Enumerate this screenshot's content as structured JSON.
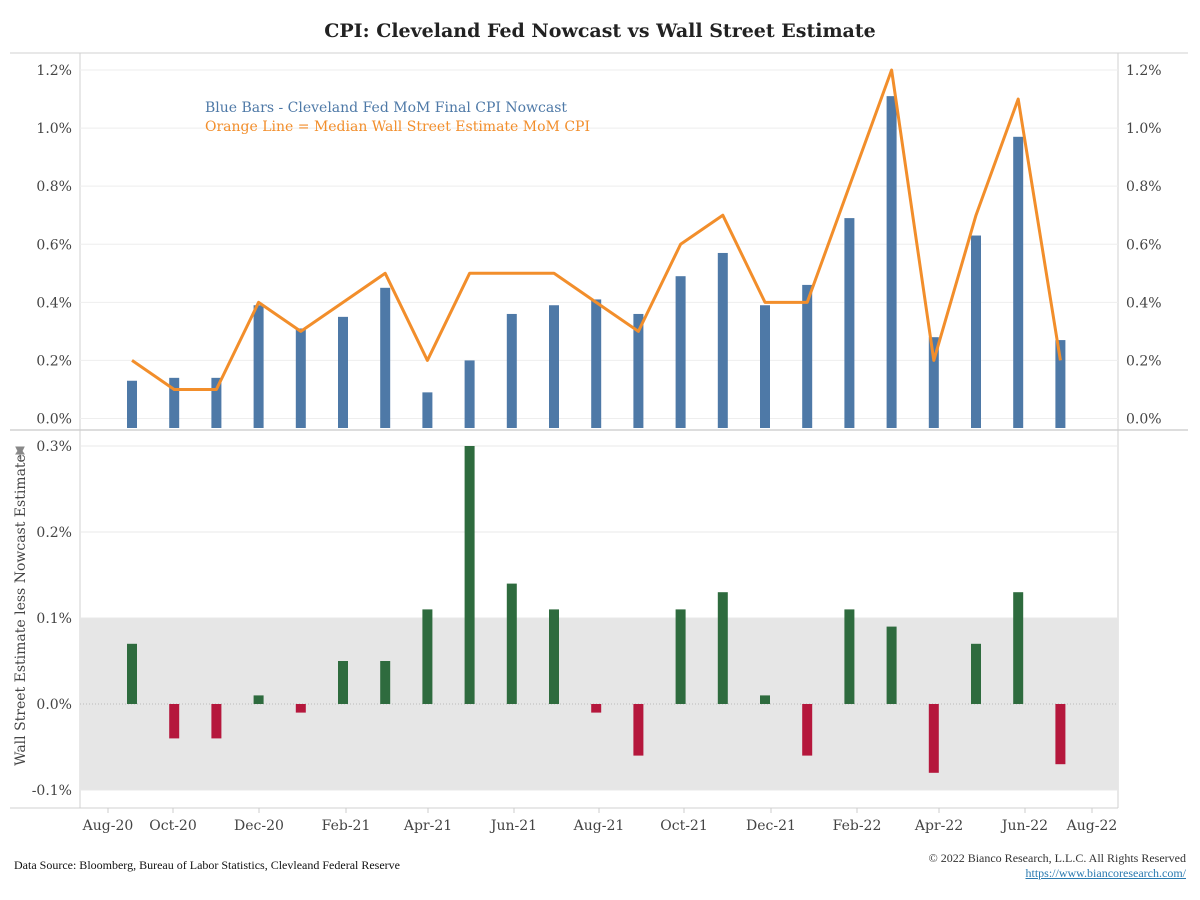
{
  "title": "CPI: Cleveland Fed Nowcast vs Wall Street Estimate",
  "footer": {
    "source": "Data Source: Bloomberg, Bureau of Labor Statistics, Clevleand Federal Reserve",
    "copyright": "© 2022 Bianco Research, L.L.C. All Rights Reserved",
    "url": "https://www.biancoresearch.com/"
  },
  "colors": {
    "nowcast_bar": "#4e79a7",
    "wall_street_line": "#f28e2b",
    "positive_diff": "#2e6b3e",
    "negative_diff": "#b5173c",
    "band": "#e6e6e6"
  },
  "chart_data": [
    {
      "type": "bar",
      "legend": {
        "line1": "Blue Bars - Cleveland Fed MoM Final CPI Nowcast",
        "line2": "Orange Line = Median Wall Street Estimate MoM CPI"
      },
      "x_tick_labels": [
        "Aug-20",
        "Oct-20",
        "Dec-20",
        "Feb-21",
        "Apr-21",
        "Jun-21",
        "Aug-21",
        "Oct-21",
        "Dec-21",
        "Feb-22",
        "Apr-22",
        "Jun-22",
        "Aug-22"
      ],
      "y_tick_labels": [
        "1.2%",
        "1.0%",
        "0.8%",
        "0.6%",
        "0.4%",
        "0.2%",
        "0.0%"
      ],
      "y_ticks": [
        1.2,
        1.0,
        0.8,
        0.6,
        0.4,
        0.2,
        0.0
      ],
      "ylim": [
        0,
        1.2
      ],
      "categories": [
        "Sep-20",
        "Oct-20",
        "Nov-20",
        "Dec-20",
        "Jan-21",
        "Feb-21",
        "Mar-21",
        "Apr-21",
        "May-21",
        "Jun-21",
        "Jul-21",
        "Aug-21",
        "Sep-21",
        "Oct-21",
        "Nov-21",
        "Dec-21",
        "Jan-22",
        "Feb-22",
        "Mar-22",
        "Apr-22",
        "May-22",
        "Jun-22",
        "Jul-22"
      ],
      "series": [
        {
          "kind": "bar",
          "values": [
            0.13,
            0.14,
            0.14,
            0.39,
            0.31,
            0.35,
            0.45,
            0.09,
            0.2,
            0.36,
            0.39,
            0.41,
            0.36,
            0.49,
            0.57,
            0.39,
            0.46,
            0.69,
            1.11,
            0.28,
            0.63,
            0.97,
            0.27
          ]
        },
        {
          "kind": "line",
          "values": [
            0.2,
            0.1,
            0.1,
            0.4,
            0.3,
            0.4,
            0.5,
            0.2,
            0.5,
            0.5,
            0.5,
            0.4,
            0.3,
            0.6,
            0.7,
            0.4,
            0.4,
            0.8,
            1.2,
            0.2,
            0.7,
            1.1,
            0.2
          ]
        }
      ]
    },
    {
      "type": "bar",
      "ylabel": "Wall Street Estimate less Nowcast Estimate",
      "y_tick_labels": [
        "0.3%",
        "0.2%",
        "0.1%",
        "0.0%",
        "-0.1%"
      ],
      "y_ticks": [
        0.3,
        0.2,
        0.1,
        0.0,
        -0.1
      ],
      "ylim": [
        -0.1,
        0.3
      ],
      "band": [
        -0.1,
        0.1
      ],
      "categories": [
        "Sep-20",
        "Oct-20",
        "Nov-20",
        "Dec-20",
        "Jan-21",
        "Feb-21",
        "Mar-21",
        "Apr-21",
        "May-21",
        "Jun-21",
        "Jul-21",
        "Aug-21",
        "Sep-21",
        "Oct-21",
        "Nov-21",
        "Dec-21",
        "Jan-22",
        "Feb-22",
        "Mar-22",
        "Apr-22",
        "May-22",
        "Jun-22",
        "Jul-22"
      ],
      "values": [
        0.07,
        -0.04,
        -0.04,
        0.01,
        -0.01,
        0.05,
        0.05,
        0.11,
        0.3,
        0.14,
        0.11,
        -0.01,
        -0.06,
        0.11,
        0.13,
        0.01,
        -0.06,
        0.11,
        0.09,
        -0.08,
        0.07,
        0.13,
        -0.07
      ]
    }
  ]
}
